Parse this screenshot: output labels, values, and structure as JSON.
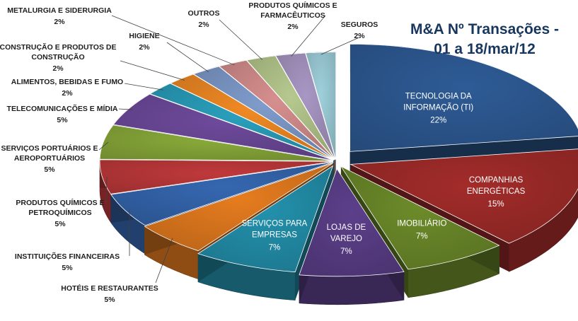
{
  "chart_data": {
    "type": "pie",
    "title_line1": "M&A   Nº Transações -",
    "title_line2": "01 a 18/mar/12",
    "slices": [
      {
        "label": "TECNOLOGIA DA INFORMAÇÃO (TI)",
        "pct_text": "22%",
        "value": 22,
        "color": "#2e5b96"
      },
      {
        "label": "COMPANHIAS ENERGÉTICAS",
        "pct_text": "15%",
        "value": 15,
        "color": "#a22c2a"
      },
      {
        "label": "IMOBILIÁRIO",
        "pct_text": "7%",
        "value": 7,
        "color": "#6d8b2a"
      },
      {
        "label": "LOJAS DE VAREJO",
        "pct_text": "7%",
        "value": 7,
        "color": "#5c3f8a"
      },
      {
        "label": "SERVIÇOS PARA EMPRESAS",
        "pct_text": "7%",
        "value": 7,
        "color": "#2391ad"
      },
      {
        "label": "HOTÉIS E RESTAURANTES",
        "pct_text": "5%",
        "value": 5,
        "color": "#e67c1f"
      },
      {
        "label": "INSTITUIÇÕES FINANCEIRAS",
        "pct_text": "5%",
        "value": 5,
        "color": "#3567b0"
      },
      {
        "label": "PRODUTOS QUÍMICOS E PETROQUÍMICOS",
        "pct_text": "5%",
        "value": 5,
        "color": "#c0393b"
      },
      {
        "label": "SERVIÇOS PORTUÁRIOS E AEROPORTUÁRIOS",
        "pct_text": "5%",
        "value": 5,
        "color": "#8aab3a"
      },
      {
        "label": "TELECOMUNICAÇÕES E MÍDIA",
        "pct_text": "5%",
        "value": 5,
        "color": "#6e4a9c"
      },
      {
        "label": "ALIMENTOS, BEBIDAS E FUMO",
        "pct_text": "2%",
        "value": 2,
        "color": "#2aa0bd"
      },
      {
        "label": "CONSTRUÇÃO E PRODUTOS DE CONSTRUÇÃO",
        "pct_text": "2%",
        "value": 2,
        "color": "#f18a24"
      },
      {
        "label": "HIGIENE",
        "pct_text": "2%",
        "value": 2,
        "color": "#7f9ccc"
      },
      {
        "label": "METALURGIA E SIDERURGIA",
        "pct_text": "2%",
        "value": 2,
        "color": "#d68f8e"
      },
      {
        "label": "OUTROS",
        "pct_text": "2%",
        "value": 2,
        "color": "#b6c98e"
      },
      {
        "label": "PRODUTOS QUÍMICOS E FARMACÊUTICOS",
        "pct_text": "2%",
        "value": 2,
        "color": "#a897c4"
      },
      {
        "label": "SEGUROS",
        "pct_text": "2%",
        "value": 2,
        "color": "#9fd0dc"
      }
    ]
  }
}
